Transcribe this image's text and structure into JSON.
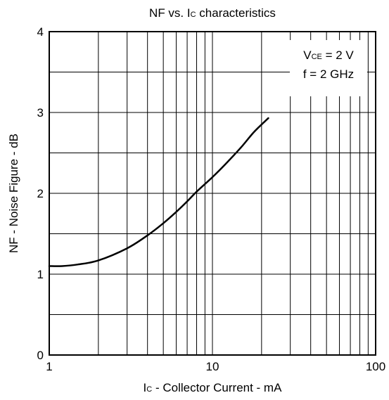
{
  "chart_data": {
    "type": "line",
    "title": "NF vs. Ic characteristics",
    "title_parts": {
      "prefix": "NF vs. I",
      "sub": "C",
      "suffix": " characteristics"
    },
    "xlabel": "Ic - Collector Current - mA",
    "xlabel_parts": {
      "main": "I",
      "sub": "C",
      "rest": " - Collector Current - mA"
    },
    "ylabel": "NF - Noise Figure - dB",
    "x_scale": "log",
    "xlim": [
      1,
      100
    ],
    "ylim": [
      0,
      4
    ],
    "x_ticks": [
      1,
      10,
      100
    ],
    "x_tick_labels": [
      "1",
      "10",
      "100"
    ],
    "y_ticks": [
      0,
      1,
      2,
      3,
      4
    ],
    "y_tick_labels": [
      "0",
      "1",
      "2",
      "3",
      "4"
    ],
    "y_minor_step": 0.5,
    "grid": true,
    "annotation": {
      "vce_main": "V",
      "vce_sub": "CE",
      "vce_value": " = 2 V",
      "freq": "f = 2 GHz",
      "placement": "top-right"
    },
    "series": [
      {
        "x": [
          1.0,
          1.2,
          1.5,
          2.0,
          3.0,
          4.0,
          5.0,
          6.0,
          7.0,
          8.0,
          10.0,
          12.0,
          15.0,
          18.0,
          22.0
        ],
        "y": [
          1.1,
          1.1,
          1.12,
          1.17,
          1.32,
          1.48,
          1.63,
          1.77,
          1.9,
          2.02,
          2.2,
          2.36,
          2.57,
          2.76,
          2.93
        ]
      }
    ]
  }
}
